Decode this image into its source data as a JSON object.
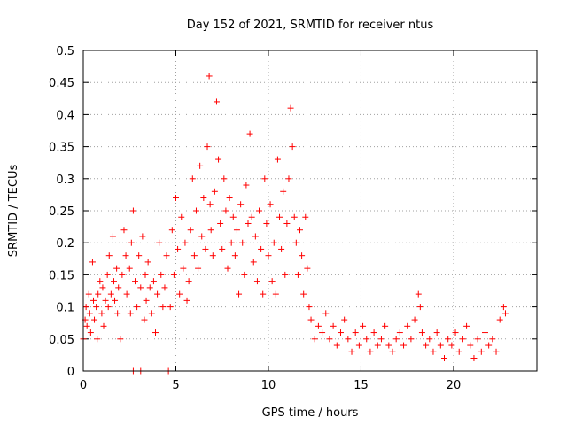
{
  "chart_data": {
    "type": "scatter",
    "title": "Day 152 of 2021, SRMTID for receiver ntus",
    "xlabel": "GPS time / hours",
    "ylabel": "SRMTID / TECUs",
    "xlim": [
      0,
      24.5
    ],
    "ylim": [
      0,
      0.5
    ],
    "xticks": [
      0,
      5,
      10,
      15,
      20
    ],
    "xtick_labels": [
      "0",
      "5",
      "10",
      "15",
      "20"
    ],
    "yticks": [
      0,
      0.05,
      0.1,
      0.15,
      0.2,
      0.25,
      0.3,
      0.35,
      0.4,
      0.45,
      0.5
    ],
    "ytick_labels": [
      "0",
      "0.05",
      "0.1",
      "0.15",
      "0.2",
      "0.25",
      "0.3",
      "0.35",
      "0.4",
      "0.45",
      "0.5"
    ],
    "grid": true,
    "marker": "+",
    "color": "#ff0000",
    "series": [
      {
        "name": "SRMTID",
        "x": [
          0.0,
          0.1,
          0.15,
          0.2,
          0.3,
          0.35,
          0.4,
          0.5,
          0.55,
          0.6,
          0.7,
          0.75,
          0.8,
          0.9,
          1.0,
          1.05,
          1.1,
          1.2,
          1.3,
          1.35,
          1.4,
          1.5,
          1.6,
          1.65,
          1.7,
          1.8,
          1.85,
          1.9,
          2.0,
          2.1,
          2.2,
          2.3,
          2.35,
          2.5,
          2.55,
          2.6,
          2.7,
          2.8,
          2.9,
          3.0,
          3.1,
          3.2,
          3.3,
          3.35,
          3.4,
          3.5,
          3.6,
          3.7,
          3.8,
          3.9,
          4.0,
          4.1,
          4.2,
          4.3,
          4.4,
          4.5,
          4.7,
          4.8,
          4.9,
          5.0,
          5.1,
          5.2,
          5.3,
          5.4,
          5.5,
          5.6,
          5.7,
          5.8,
          5.9,
          6.0,
          6.1,
          6.2,
          6.3,
          6.4,
          6.5,
          6.6,
          6.7,
          6.8,
          6.85,
          6.9,
          7.0,
          7.1,
          7.2,
          7.3,
          7.4,
          7.5,
          7.6,
          7.7,
          7.8,
          7.9,
          8.0,
          8.1,
          8.2,
          8.3,
          8.4,
          8.5,
          8.6,
          8.7,
          8.8,
          8.9,
          9.0,
          9.1,
          9.2,
          9.3,
          9.4,
          9.5,
          9.6,
          9.7,
          9.8,
          9.9,
          10.0,
          10.1,
          10.2,
          10.3,
          10.4,
          10.5,
          10.6,
          10.7,
          10.8,
          10.9,
          11.0,
          11.1,
          11.2,
          11.3,
          11.4,
          11.5,
          11.6,
          11.7,
          11.8,
          11.9,
          12.0,
          12.1,
          12.2,
          12.3,
          12.5,
          12.7,
          12.9,
          13.1,
          13.3,
          13.5,
          13.7,
          13.9,
          14.1,
          14.3,
          14.5,
          14.7,
          14.9,
          15.1,
          15.3,
          15.5,
          15.7,
          15.9,
          16.1,
          16.3,
          16.5,
          16.7,
          16.9,
          17.1,
          17.3,
          17.5,
          17.7,
          17.9,
          18.1,
          18.2,
          18.3,
          18.5,
          18.7,
          18.9,
          19.1,
          19.3,
          19.5,
          19.7,
          19.9,
          20.1,
          20.3,
          20.5,
          20.7,
          20.9,
          21.1,
          21.3,
          21.5,
          21.7,
          21.9,
          22.1,
          22.3,
          22.5,
          22.7,
          22.8,
          2.7,
          3.1,
          4.6
        ],
        "y": [
          0.05,
          0.08,
          0.1,
          0.07,
          0.12,
          0.09,
          0.06,
          0.17,
          0.11,
          0.08,
          0.1,
          0.05,
          0.12,
          0.14,
          0.09,
          0.13,
          0.07,
          0.11,
          0.15,
          0.1,
          0.18,
          0.12,
          0.21,
          0.14,
          0.11,
          0.16,
          0.09,
          0.13,
          0.05,
          0.15,
          0.22,
          0.18,
          0.12,
          0.16,
          0.09,
          0.2,
          0.25,
          0.14,
          0.1,
          0.18,
          0.13,
          0.21,
          0.08,
          0.15,
          0.11,
          0.17,
          0.13,
          0.09,
          0.14,
          0.06,
          0.12,
          0.2,
          0.15,
          0.1,
          0.13,
          0.18,
          0.1,
          0.22,
          0.15,
          0.27,
          0.19,
          0.12,
          0.24,
          0.16,
          0.2,
          0.11,
          0.14,
          0.22,
          0.3,
          0.18,
          0.25,
          0.16,
          0.32,
          0.21,
          0.27,
          0.19,
          0.35,
          0.46,
          0.26,
          0.22,
          0.18,
          0.28,
          0.42,
          0.33,
          0.23,
          0.19,
          0.3,
          0.25,
          0.16,
          0.27,
          0.2,
          0.24,
          0.18,
          0.22,
          0.12,
          0.26,
          0.2,
          0.15,
          0.29,
          0.23,
          0.37,
          0.24,
          0.17,
          0.21,
          0.14,
          0.25,
          0.19,
          0.12,
          0.3,
          0.23,
          0.18,
          0.26,
          0.14,
          0.2,
          0.12,
          0.33,
          0.24,
          0.19,
          0.28,
          0.15,
          0.23,
          0.3,
          0.41,
          0.35,
          0.24,
          0.2,
          0.15,
          0.22,
          0.18,
          0.12,
          0.24,
          0.16,
          0.1,
          0.08,
          0.05,
          0.07,
          0.06,
          0.09,
          0.05,
          0.07,
          0.04,
          0.06,
          0.08,
          0.05,
          0.03,
          0.06,
          0.04,
          0.07,
          0.05,
          0.03,
          0.06,
          0.04,
          0.05,
          0.07,
          0.04,
          0.03,
          0.05,
          0.06,
          0.04,
          0.07,
          0.05,
          0.08,
          0.12,
          0.1,
          0.06,
          0.04,
          0.05,
          0.03,
          0.06,
          0.04,
          0.02,
          0.05,
          0.04,
          0.06,
          0.03,
          0.05,
          0.07,
          0.04,
          0.02,
          0.05,
          0.03,
          0.06,
          0.04,
          0.05,
          0.03,
          0.08,
          0.1,
          0.09,
          0.0,
          0.0,
          0.0
        ]
      }
    ]
  }
}
